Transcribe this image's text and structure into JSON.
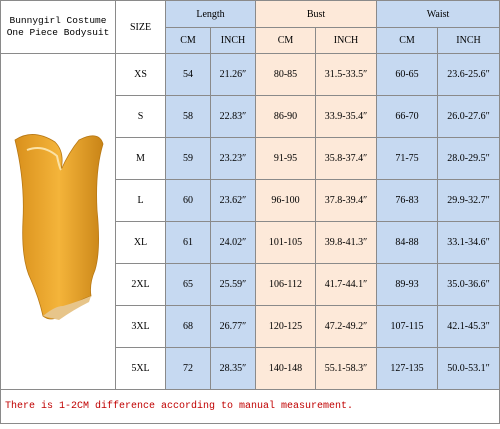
{
  "title": "Bunnygirl Costume One Piece Bodysuit",
  "table": {
    "size_header": "SIZE",
    "groups": [
      "Length",
      "Bust",
      "Waist"
    ],
    "units": [
      "CM",
      "INCH",
      "CM",
      "INCH",
      "CM",
      "INCH"
    ],
    "rows": [
      [
        "XS",
        "54",
        "21.26″",
        "80-85",
        "31.5-33.5″",
        "60-65",
        "23.6-25.6″"
      ],
      [
        "S",
        "58",
        "22.83″",
        "86-90",
        "33.9-35.4″",
        "66-70",
        "26.0-27.6″"
      ],
      [
        "M",
        "59",
        "23.23″",
        "91-95",
        "35.8-37.4″",
        "71-75",
        "28.0-29.5″"
      ],
      [
        "L",
        "60",
        "23.62″",
        "96-100",
        "37.8-39.4″",
        "76-83",
        "29.9-32.7″"
      ],
      [
        "XL",
        "61",
        "24.02″",
        "101-105",
        "39.8-41.3″",
        "84-88",
        "33.1-34.6″"
      ],
      [
        "2XL",
        "65",
        "25.59″",
        "106-112",
        "41.7-44.1″",
        "89-93",
        "35.0-36.6″"
      ],
      [
        "3XL",
        "68",
        "26.77″",
        "120-125",
        "47.2-49.2″",
        "107-115",
        "42.1-45.3″"
      ],
      [
        "5XL",
        "72",
        "28.35″",
        "140-148",
        "55.1-58.3″",
        "127-135",
        "50.0-53.1″"
      ]
    ]
  },
  "note": "There is 1-2CM difference according to manual measurement."
}
